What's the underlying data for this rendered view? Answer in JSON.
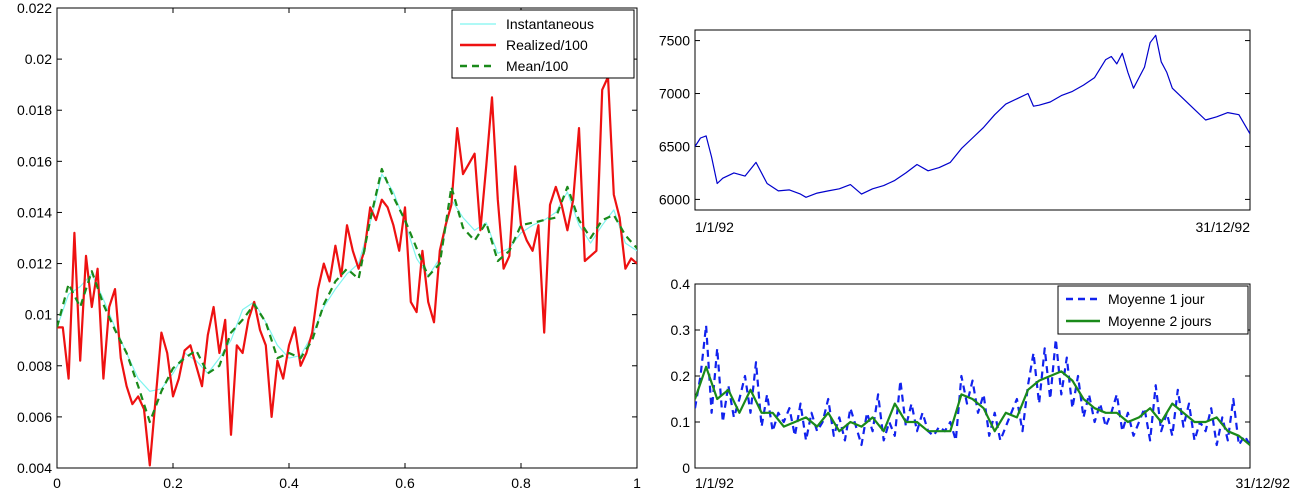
{
  "chart_data": [
    {
      "type": "line",
      "xlim": [
        0,
        1
      ],
      "ylim": [
        0.004,
        0.022
      ],
      "x_ticks": [
        "0",
        "0.2",
        "0.4",
        "0.6",
        "0.8",
        "1"
      ],
      "y_ticks": [
        "0.004",
        "0.006",
        "0.008",
        "0.01",
        "0.012",
        "0.014",
        "0.016",
        "0.018",
        "0.02",
        "0.022"
      ],
      "legend_placement": "top-right",
      "grid": false,
      "series": [
        {
          "name": "Instantaneous",
          "color": "#7ff5f0",
          "style": "solid",
          "x": [
            0,
            0.02,
            0.04,
            0.06,
            0.08,
            0.1,
            0.12,
            0.14,
            0.16,
            0.18,
            0.2,
            0.22,
            0.24,
            0.26,
            0.28,
            0.3,
            0.32,
            0.34,
            0.36,
            0.38,
            0.4,
            0.42,
            0.44,
            0.46,
            0.48,
            0.5,
            0.52,
            0.54,
            0.56,
            0.58,
            0.6,
            0.62,
            0.64,
            0.66,
            0.68,
            0.7,
            0.72,
            0.74,
            0.76,
            0.78,
            0.8,
            0.82,
            0.84,
            0.86,
            0.88,
            0.9,
            0.92,
            0.94,
            0.96,
            0.98,
            1.0
          ],
          "y": [
            0.0095,
            0.0108,
            0.0111,
            0.0116,
            0.0106,
            0.0095,
            0.0085,
            0.0075,
            0.007,
            0.0071,
            0.0077,
            0.0085,
            0.0082,
            0.0077,
            0.0083,
            0.009,
            0.0102,
            0.0105,
            0.0097,
            0.0088,
            0.0083,
            0.0084,
            0.0092,
            0.0103,
            0.011,
            0.0116,
            0.012,
            0.0136,
            0.0155,
            0.0148,
            0.0136,
            0.0122,
            0.0115,
            0.0122,
            0.0145,
            0.0138,
            0.0133,
            0.0136,
            0.0124,
            0.0126,
            0.0132,
            0.0135,
            0.0137,
            0.014,
            0.0148,
            0.0135,
            0.0128,
            0.0135,
            0.0141,
            0.0128,
            0.0125
          ]
        },
        {
          "name": "Realized/100",
          "color": "#ee1111",
          "style": "solid",
          "x": [
            0,
            0.01,
            0.02,
            0.03,
            0.04,
            0.05,
            0.06,
            0.07,
            0.08,
            0.09,
            0.1,
            0.11,
            0.12,
            0.13,
            0.14,
            0.15,
            0.16,
            0.17,
            0.18,
            0.19,
            0.2,
            0.21,
            0.22,
            0.23,
            0.24,
            0.25,
            0.26,
            0.27,
            0.28,
            0.29,
            0.3,
            0.31,
            0.32,
            0.33,
            0.34,
            0.35,
            0.36,
            0.37,
            0.38,
            0.39,
            0.4,
            0.41,
            0.42,
            0.43,
            0.44,
            0.45,
            0.46,
            0.47,
            0.48,
            0.49,
            0.5,
            0.51,
            0.52,
            0.53,
            0.54,
            0.55,
            0.56,
            0.57,
            0.58,
            0.59,
            0.6,
            0.61,
            0.62,
            0.63,
            0.64,
            0.65,
            0.66,
            0.67,
            0.68,
            0.69,
            0.7,
            0.71,
            0.72,
            0.73,
            0.74,
            0.75,
            0.76,
            0.77,
            0.78,
            0.79,
            0.8,
            0.81,
            0.82,
            0.83,
            0.84,
            0.85,
            0.86,
            0.87,
            0.88,
            0.89,
            0.9,
            0.91,
            0.92,
            0.93,
            0.94,
            0.95,
            0.96,
            0.97,
            0.98,
            0.99,
            1.0
          ],
          "y": [
            0.0095,
            0.0095,
            0.0075,
            0.0132,
            0.0082,
            0.0123,
            0.0103,
            0.0118,
            0.0075,
            0.0103,
            0.011,
            0.0083,
            0.0072,
            0.0065,
            0.0068,
            0.0063,
            0.0041,
            0.0067,
            0.0093,
            0.0085,
            0.0068,
            0.0075,
            0.0086,
            0.0088,
            0.008,
            0.0072,
            0.0092,
            0.0103,
            0.0085,
            0.0098,
            0.0053,
            0.0088,
            0.0085,
            0.0098,
            0.0105,
            0.0094,
            0.0088,
            0.006,
            0.0082,
            0.0075,
            0.0088,
            0.0095,
            0.008,
            0.0085,
            0.0093,
            0.011,
            0.012,
            0.0113,
            0.0127,
            0.0115,
            0.0135,
            0.0125,
            0.0118,
            0.0125,
            0.0142,
            0.0137,
            0.0145,
            0.0142,
            0.0135,
            0.0125,
            0.0142,
            0.0105,
            0.0101,
            0.0125,
            0.0105,
            0.0097,
            0.0125,
            0.0135,
            0.0143,
            0.0173,
            0.0155,
            0.0159,
            0.0163,
            0.0133,
            0.0158,
            0.0185,
            0.0145,
            0.0118,
            0.0123,
            0.0158,
            0.0135,
            0.0129,
            0.0125,
            0.0135,
            0.0093,
            0.0143,
            0.015,
            0.0143,
            0.0133,
            0.0145,
            0.0173,
            0.0121,
            0.0123,
            0.0125,
            0.0188,
            0.0193,
            0.0147,
            0.0138,
            0.0118,
            0.0122,
            0.012
          ]
        },
        {
          "name": "Mean/100",
          "color": "#1a8a1a",
          "style": "dashed",
          "x": [
            0,
            0.02,
            0.04,
            0.06,
            0.08,
            0.1,
            0.12,
            0.14,
            0.16,
            0.18,
            0.2,
            0.22,
            0.24,
            0.26,
            0.28,
            0.3,
            0.32,
            0.34,
            0.36,
            0.38,
            0.4,
            0.42,
            0.44,
            0.46,
            0.48,
            0.5,
            0.52,
            0.54,
            0.56,
            0.58,
            0.6,
            0.62,
            0.64,
            0.66,
            0.68,
            0.7,
            0.72,
            0.74,
            0.76,
            0.78,
            0.8,
            0.82,
            0.84,
            0.86,
            0.88,
            0.9,
            0.92,
            0.94,
            0.96,
            0.98,
            1.0
          ],
          "y": [
            0.0095,
            0.0112,
            0.0103,
            0.0117,
            0.0104,
            0.0094,
            0.0085,
            0.0072,
            0.0058,
            0.007,
            0.0079,
            0.0083,
            0.0086,
            0.0077,
            0.008,
            0.0093,
            0.0098,
            0.0104,
            0.0097,
            0.0083,
            0.0085,
            0.0083,
            0.009,
            0.0104,
            0.0113,
            0.0118,
            0.0114,
            0.0137,
            0.0157,
            0.0146,
            0.0137,
            0.0126,
            0.0115,
            0.012,
            0.015,
            0.0134,
            0.0129,
            0.0136,
            0.0121,
            0.0125,
            0.0135,
            0.0136,
            0.0137,
            0.0138,
            0.015,
            0.0137,
            0.013,
            0.0137,
            0.0139,
            0.0131,
            0.0126
          ]
        }
      ]
    },
    {
      "type": "line",
      "x_start_label": "1/1/92",
      "x_end_label": "31/12/92",
      "ylim": [
        5900,
        7600
      ],
      "y_ticks": [
        "6000",
        "6500",
        "7000",
        "7500"
      ],
      "grid": false,
      "series": [
        {
          "color": "#0000cc",
          "style": "solid",
          "x": [
            0,
            0.01,
            0.02,
            0.03,
            0.04,
            0.05,
            0.07,
            0.09,
            0.11,
            0.13,
            0.15,
            0.17,
            0.19,
            0.2,
            0.22,
            0.24,
            0.26,
            0.28,
            0.3,
            0.32,
            0.34,
            0.36,
            0.38,
            0.4,
            0.42,
            0.44,
            0.46,
            0.48,
            0.5,
            0.52,
            0.54,
            0.56,
            0.58,
            0.6,
            0.61,
            0.62,
            0.64,
            0.66,
            0.68,
            0.7,
            0.72,
            0.74,
            0.75,
            0.76,
            0.77,
            0.78,
            0.79,
            0.8,
            0.81,
            0.82,
            0.83,
            0.84,
            0.85,
            0.86,
            0.88,
            0.9,
            0.92,
            0.94,
            0.96,
            0.98,
            1.0
          ],
          "y": [
            6500,
            6580,
            6600,
            6400,
            6150,
            6200,
            6250,
            6220,
            6350,
            6150,
            6080,
            6090,
            6050,
            6020,
            6060,
            6080,
            6100,
            6140,
            6050,
            6100,
            6130,
            6180,
            6250,
            6330,
            6270,
            6300,
            6350,
            6480,
            6580,
            6680,
            6800,
            6900,
            6950,
            7000,
            6880,
            6890,
            6920,
            6980,
            7020,
            7080,
            7150,
            7320,
            7350,
            7280,
            7380,
            7200,
            7050,
            7150,
            7250,
            7480,
            7550,
            7300,
            7200,
            7050,
            6950,
            6850,
            6750,
            6780,
            6820,
            6800,
            6620
          ]
        }
      ]
    },
    {
      "type": "line",
      "x_start_label": "1/1/92",
      "x_end_label": "31/12/92",
      "ylim": [
        0,
        0.4
      ],
      "y_ticks": [
        "0",
        "0.1",
        "0.2",
        "0.3",
        "0.4"
      ],
      "legend_placement": "top-right",
      "grid": false,
      "series": [
        {
          "name": "Moyenne 1 jour",
          "color": "#1122ee",
          "style": "dashed",
          "x": [
            0,
            0.01,
            0.02,
            0.03,
            0.04,
            0.05,
            0.06,
            0.07,
            0.08,
            0.09,
            0.1,
            0.11,
            0.12,
            0.13,
            0.14,
            0.15,
            0.16,
            0.17,
            0.18,
            0.19,
            0.2,
            0.21,
            0.22,
            0.23,
            0.24,
            0.25,
            0.26,
            0.27,
            0.28,
            0.29,
            0.3,
            0.31,
            0.32,
            0.33,
            0.34,
            0.35,
            0.36,
            0.37,
            0.38,
            0.39,
            0.4,
            0.41,
            0.42,
            0.43,
            0.44,
            0.45,
            0.46,
            0.47,
            0.48,
            0.49,
            0.5,
            0.51,
            0.52,
            0.53,
            0.54,
            0.55,
            0.56,
            0.57,
            0.58,
            0.59,
            0.6,
            0.61,
            0.62,
            0.63,
            0.64,
            0.65,
            0.66,
            0.67,
            0.68,
            0.69,
            0.7,
            0.71,
            0.72,
            0.73,
            0.74,
            0.75,
            0.76,
            0.77,
            0.78,
            0.79,
            0.8,
            0.81,
            0.82,
            0.83,
            0.84,
            0.85,
            0.86,
            0.87,
            0.88,
            0.89,
            0.9,
            0.91,
            0.92,
            0.93,
            0.94,
            0.95,
            0.96,
            0.97,
            0.98,
            0.99,
            1.0
          ],
          "y": [
            0.13,
            0.2,
            0.31,
            0.12,
            0.26,
            0.1,
            0.18,
            0.11,
            0.15,
            0.2,
            0.12,
            0.23,
            0.09,
            0.16,
            0.08,
            0.12,
            0.1,
            0.13,
            0.07,
            0.14,
            0.06,
            0.12,
            0.08,
            0.1,
            0.15,
            0.07,
            0.11,
            0.06,
            0.13,
            0.09,
            0.05,
            0.12,
            0.08,
            0.16,
            0.06,
            0.1,
            0.07,
            0.19,
            0.09,
            0.14,
            0.08,
            0.12,
            0.08,
            0.07,
            0.09,
            0.08,
            0.1,
            0.06,
            0.2,
            0.14,
            0.19,
            0.12,
            0.16,
            0.07,
            0.12,
            0.06,
            0.09,
            0.12,
            0.15,
            0.08,
            0.18,
            0.25,
            0.14,
            0.26,
            0.15,
            0.28,
            0.16,
            0.24,
            0.13,
            0.2,
            0.11,
            0.16,
            0.1,
            0.14,
            0.09,
            0.12,
            0.16,
            0.08,
            0.12,
            0.07,
            0.1,
            0.13,
            0.06,
            0.18,
            0.08,
            0.12,
            0.07,
            0.17,
            0.09,
            0.14,
            0.06,
            0.1,
            0.08,
            0.13,
            0.05,
            0.11,
            0.06,
            0.15,
            0.05,
            0.07,
            0.05
          ]
        },
        {
          "name": "Moyenne 2 jours",
          "color": "#1a8a1a",
          "style": "solid",
          "x": [
            0,
            0.02,
            0.04,
            0.06,
            0.08,
            0.1,
            0.12,
            0.14,
            0.16,
            0.18,
            0.2,
            0.22,
            0.24,
            0.26,
            0.28,
            0.3,
            0.32,
            0.34,
            0.36,
            0.38,
            0.4,
            0.42,
            0.44,
            0.46,
            0.48,
            0.5,
            0.52,
            0.54,
            0.56,
            0.58,
            0.6,
            0.62,
            0.64,
            0.66,
            0.68,
            0.7,
            0.72,
            0.74,
            0.76,
            0.78,
            0.8,
            0.82,
            0.84,
            0.86,
            0.88,
            0.9,
            0.92,
            0.94,
            0.96,
            0.98,
            1.0
          ],
          "y": [
            0.15,
            0.22,
            0.15,
            0.17,
            0.12,
            0.17,
            0.12,
            0.12,
            0.09,
            0.1,
            0.11,
            0.09,
            0.12,
            0.08,
            0.1,
            0.09,
            0.11,
            0.08,
            0.14,
            0.1,
            0.1,
            0.08,
            0.08,
            0.08,
            0.16,
            0.15,
            0.13,
            0.08,
            0.12,
            0.11,
            0.17,
            0.19,
            0.2,
            0.21,
            0.19,
            0.15,
            0.13,
            0.12,
            0.12,
            0.1,
            0.11,
            0.13,
            0.1,
            0.14,
            0.12,
            0.1,
            0.1,
            0.11,
            0.08,
            0.07,
            0.05
          ]
        }
      ]
    }
  ]
}
